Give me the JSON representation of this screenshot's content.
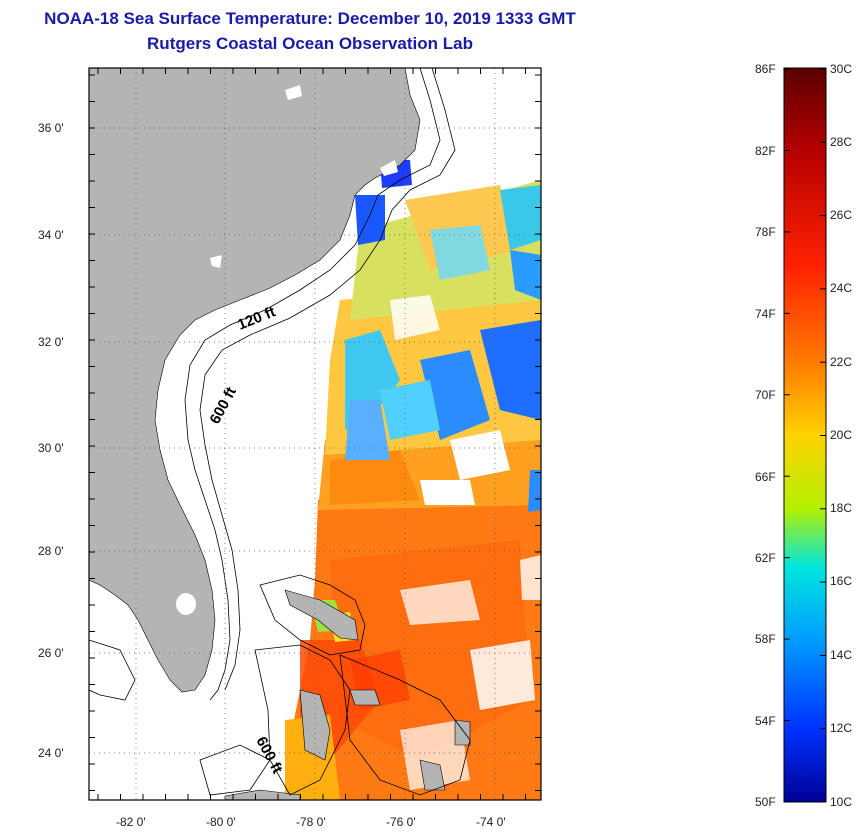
{
  "title": "NOAA-18 Sea Surface Temperature:  December 10, 2019 1333 GMT",
  "subtitle": "Rutgers Coastal Ocean Observation Lab",
  "map": {
    "lat_labels": [
      "36 0'",
      "34 0'",
      "32 0'",
      "30 0'",
      "28 0'",
      "26 0'",
      "24 0'"
    ],
    "lon_labels": [
      "-82 0'",
      "-80 0'",
      "-78 0'",
      "-76 0'",
      "-74 0'"
    ],
    "contour_labels": [
      "120 ft",
      "600 ft",
      "600 ft"
    ],
    "land_color": "#b4b4b4"
  },
  "colorbar": {
    "fahrenheit_labels": [
      "86F",
      "82F",
      "78F",
      "74F",
      "70F",
      "66F",
      "62F",
      "58F",
      "54F",
      "50F"
    ],
    "celsius_labels": [
      "30C",
      "28C",
      "26C",
      "24C",
      "22C",
      "20C",
      "18C",
      "16C",
      "14C",
      "12C",
      "10C"
    ],
    "colors": [
      "#5a0000",
      "#b40000",
      "#ff2200",
      "#ff7a00",
      "#ffd200",
      "#b4f000",
      "#00e6dc",
      "#009cff",
      "#0032ff",
      "#000096"
    ]
  }
}
